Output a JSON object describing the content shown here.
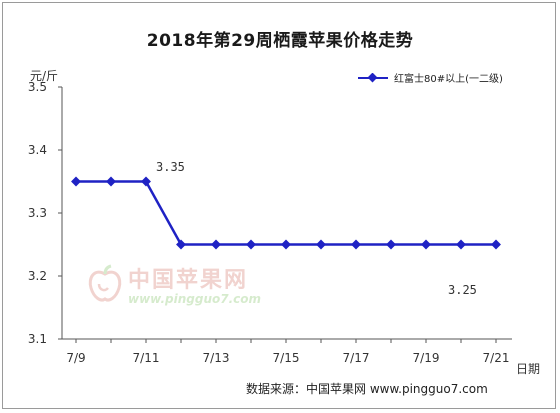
{
  "chart_data": {
    "type": "line",
    "title": "2018年第29周栖霞苹果价格走势",
    "ylabel": "元/斤",
    "xlabel": "日期",
    "ylim": [
      3.1,
      3.5
    ],
    "yticks": [
      "3.5",
      "3.4",
      "3.3",
      "3.2",
      "3.1"
    ],
    "yticks_values": [
      3.5,
      3.4,
      3.3,
      3.2,
      3.1
    ],
    "x": [
      "7/9",
      "7/10",
      "7/11",
      "7/12",
      "7/13",
      "7/14",
      "7/15",
      "7/16",
      "7/17",
      "7/18",
      "7/19",
      "7/20",
      "7/21"
    ],
    "xtick_labels": [
      "7/9",
      "7/11",
      "7/13",
      "7/15",
      "7/17",
      "7/19",
      "7/21"
    ],
    "series": [
      {
        "name": "红富士80#以上(一二级)",
        "color": "#1f22c4",
        "values": [
          3.35,
          3.35,
          3.35,
          3.25,
          3.25,
          3.25,
          3.25,
          3.25,
          3.25,
          3.25,
          3.25,
          3.25,
          3.25
        ]
      }
    ],
    "data_labels": [
      "3.35",
      "3.25"
    ],
    "grid": false,
    "legend": "top-right"
  },
  "source_label": "数据来源：中国苹果网 www.pingguo7.com",
  "watermark": {
    "name": "中国苹果网",
    "url": "www.pingguo7.com"
  }
}
